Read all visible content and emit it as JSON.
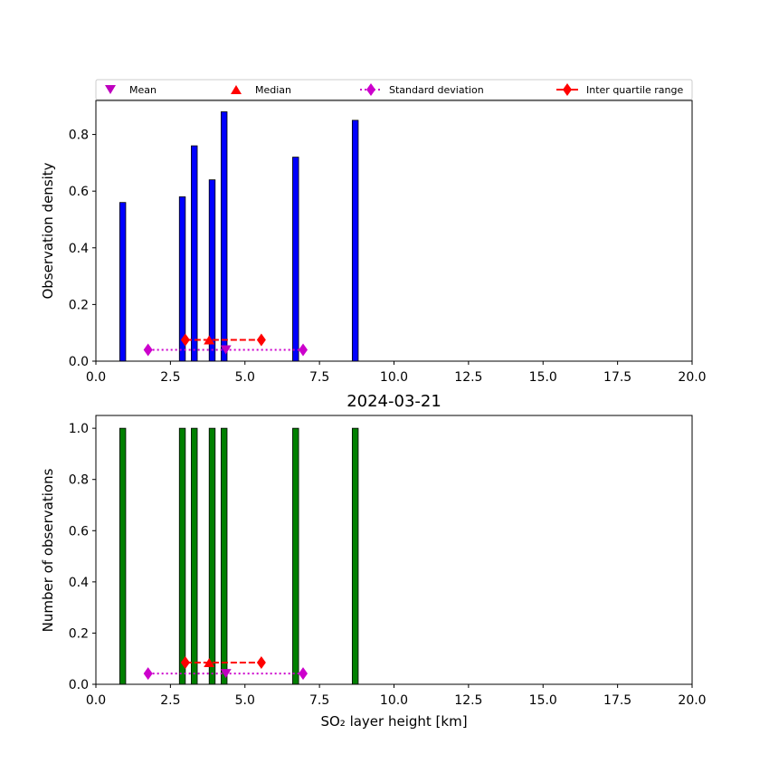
{
  "colors": {
    "density_bar": "#0000ff",
    "count_bar": "#008000",
    "mean": "#bf00bf",
    "median": "#ff0000",
    "std": "#cc00cc",
    "iqr": "#ff0000"
  },
  "legend": {
    "mean": "Mean",
    "median": "Median",
    "std": "Standard deviation",
    "iqr": "Inter quartile range"
  },
  "chart_data": [
    {
      "type": "bar",
      "panel": "top",
      "title": "",
      "xlabel": "",
      "ylabel": "Observation density",
      "xlim": [
        0,
        20
      ],
      "ylim": [
        0,
        0.92
      ],
      "xticks": [
        "0.0",
        "2.5",
        "5.0",
        "7.5",
        "10.0",
        "12.5",
        "15.0",
        "17.5",
        "20.0"
      ],
      "yticks": [
        "0.0",
        "0.2",
        "0.4",
        "0.6",
        "0.8"
      ],
      "bar_width": 0.2,
      "x": [
        0.9,
        2.9,
        3.3,
        3.9,
        4.3,
        6.7,
        8.7
      ],
      "values": [
        0.56,
        0.58,
        0.76,
        0.64,
        0.88,
        0.72,
        0.85
      ],
      "stats": {
        "mean": 4.36,
        "median": 3.8,
        "std_range": [
          1.75,
          6.95
        ],
        "iqr_range": [
          3.0,
          5.55
        ],
        "marker_y_stats": 0.04,
        "marker_y_iqr": 0.075
      },
      "legend_position": "top, above axes",
      "grid": false
    },
    {
      "type": "bar",
      "panel": "bottom",
      "title": "2024-03-21",
      "xlabel": "SO₂ layer height [km]",
      "ylabel": "Number of observations",
      "xlim": [
        0,
        20
      ],
      "ylim": [
        0,
        1.05
      ],
      "xticks": [
        "0.0",
        "2.5",
        "5.0",
        "7.5",
        "10.0",
        "12.5",
        "15.0",
        "17.5",
        "20.0"
      ],
      "yticks": [
        "0.0",
        "0.2",
        "0.4",
        "0.6",
        "0.8",
        "1.0"
      ],
      "bar_width": 0.2,
      "x": [
        0.9,
        2.9,
        3.3,
        3.9,
        4.3,
        6.7,
        8.7
      ],
      "values": [
        1,
        1,
        1,
        1,
        1,
        1,
        1
      ],
      "stats": {
        "mean": 4.36,
        "median": 3.8,
        "std_range": [
          1.75,
          6.95
        ],
        "iqr_range": [
          3.0,
          5.55
        ],
        "marker_y_stats": 0.042,
        "marker_y_iqr": 0.085
      },
      "grid": false
    }
  ]
}
